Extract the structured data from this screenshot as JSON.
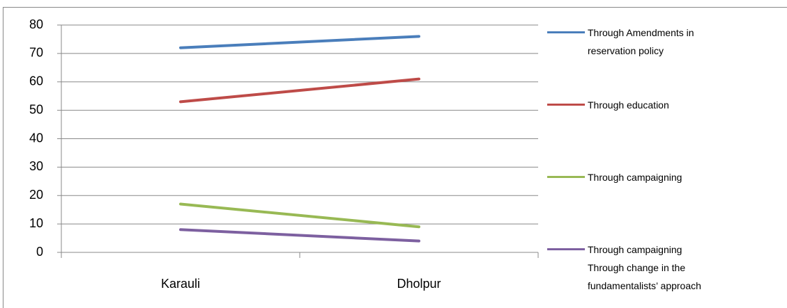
{
  "chart_data": {
    "type": "line",
    "categories": [
      "Karauli",
      "Dholpur"
    ],
    "series": [
      {
        "name": "Through Amendments in reservation policy",
        "color": "#4a7ebb",
        "values": [
          72,
          76
        ]
      },
      {
        "name": "Through education",
        "color": "#be4b48",
        "values": [
          53,
          61
        ]
      },
      {
        "name": "Through campaigning",
        "color": "#98b954",
        "values": [
          17,
          9
        ]
      },
      {
        "name": "Through campaigning Through change in the fundamentalists’ approach",
        "color": "#7d60a0",
        "values": [
          8,
          4
        ]
      }
    ],
    "ylim": [
      0,
      80
    ],
    "yticks": [
      0,
      10,
      20,
      30,
      40,
      50,
      60,
      70,
      80
    ],
    "grid": true,
    "legend": "right"
  }
}
